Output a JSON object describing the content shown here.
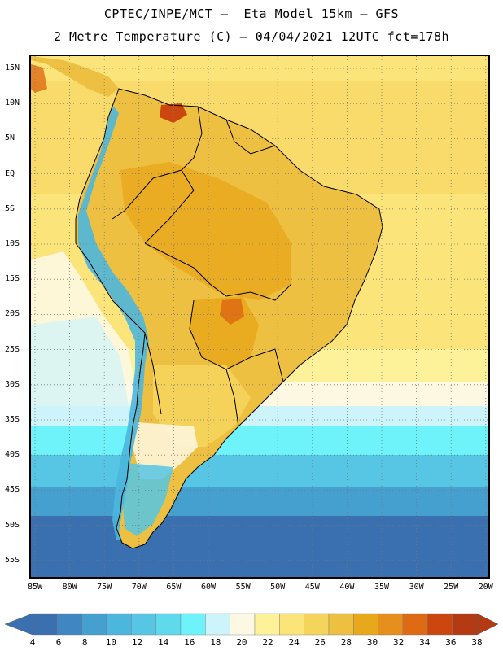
{
  "title_line1": "CPTEC/INPE/MCT –  Eta Model 15km – GFS",
  "title_line2": "2 Metre Temperature (C) – 04/04/2021 12UTC fct=178h",
  "latitude_labels": [
    "15N",
    "10N",
    "5N",
    "EQ",
    "5S",
    "10S",
    "15S",
    "20S",
    "25S",
    "30S",
    "35S",
    "40S",
    "45S",
    "50S",
    "55S"
  ],
  "longitude_labels": [
    "85W",
    "80W",
    "75W",
    "70W",
    "65W",
    "60W",
    "55W",
    "50W",
    "45W",
    "40W",
    "35W",
    "30W",
    "25W",
    "20W"
  ],
  "colorbar": {
    "labels": [
      "4",
      "6",
      "8",
      "10",
      "12",
      "14",
      "16",
      "18",
      "20",
      "22",
      "24",
      "26",
      "28",
      "30",
      "32",
      "34",
      "36",
      "38"
    ],
    "colors": [
      "#3a6fb0",
      "#3f86c2",
      "#45a0d0",
      "#4cb6dd",
      "#56c6e4",
      "#5fd9ec",
      "#6ef3fb",
      "#cdf4fb",
      "#fdf8e2",
      "#fdf29a",
      "#fbe47a",
      "#f5d45c",
      "#eec042",
      "#e8a81c",
      "#e68f1c",
      "#de6a14",
      "#cc4610",
      "#b43a14"
    ]
  },
  "map_colors": {
    "ocean_tropical": "#fbe47a",
    "ocean_warm": "#fdf29a",
    "ocean_mild": "#fdf8e2",
    "ocean_cool": "#cdf4fb",
    "ocean_cold": "#6ef3fb",
    "ocean_colder": "#56c6e4",
    "ocean_coldest": "#3a6fb0",
    "land_hot": "#e8a81c",
    "land_warm": "#eec042",
    "land_very_hot": "#cc4610",
    "andes_cold": "#4cb6dd"
  }
}
